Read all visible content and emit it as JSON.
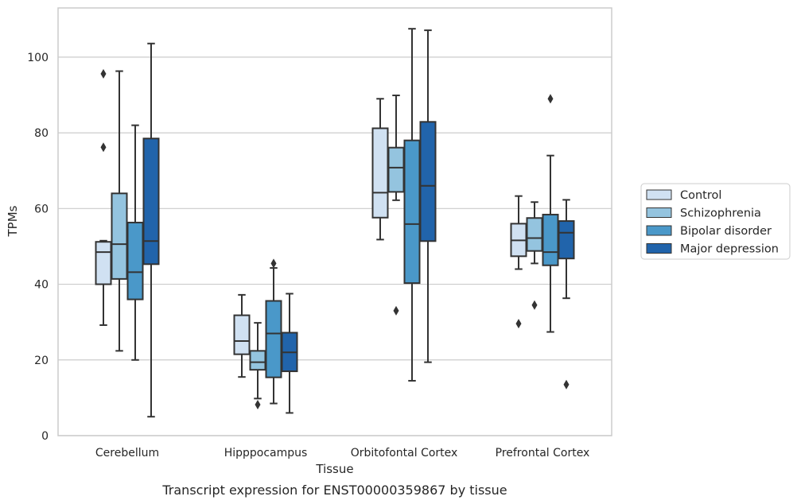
{
  "chart_data": {
    "type": "box",
    "title": "",
    "caption": "Transcript expression for ENST00000359867 by tissue",
    "xlabel": "Tissue",
    "ylabel": "TPMs",
    "ylim": [
      0,
      113
    ],
    "yticks": [
      0,
      20,
      40,
      60,
      80,
      100
    ],
    "grid": "horizontal",
    "legend_position": "right",
    "categories": [
      "Cerebellum",
      "Hipppocampus",
      "Orbitofontal Cortex",
      "Prefrontal Cortex"
    ],
    "series": [
      {
        "name": "Control",
        "color": "#d0e1f2",
        "boxes": [
          {
            "whislo": 29.2,
            "q1": 40.0,
            "med": 48.5,
            "q3": 51.2,
            "whishi": 51.5,
            "fliers": [
              76.2,
              95.6
            ]
          },
          {
            "whislo": 15.5,
            "q1": 21.5,
            "med": 25.0,
            "q3": 31.8,
            "whishi": 37.2,
            "fliers": []
          },
          {
            "whislo": 51.8,
            "q1": 57.6,
            "med": 64.2,
            "q3": 81.2,
            "whishi": 89.0,
            "fliers": []
          },
          {
            "whislo": 44.0,
            "q1": 47.4,
            "med": 51.6,
            "q3": 56.0,
            "whishi": 63.3,
            "fliers": [
              29.6
            ]
          }
        ]
      },
      {
        "name": "Schizophrenia",
        "color": "#94c4df",
        "boxes": [
          {
            "whislo": 22.4,
            "q1": 41.4,
            "med": 50.6,
            "q3": 64.0,
            "whishi": 96.3,
            "fliers": []
          },
          {
            "whislo": 9.8,
            "q1": 17.4,
            "med": 19.4,
            "q3": 22.4,
            "whishi": 29.8,
            "fliers": [
              8.2
            ]
          },
          {
            "whislo": 62.2,
            "q1": 64.4,
            "med": 70.8,
            "q3": 76.1,
            "whishi": 89.9,
            "fliers": [
              33.0
            ]
          },
          {
            "whislo": 45.5,
            "q1": 48.8,
            "med": 52.2,
            "q3": 57.5,
            "whishi": 61.7,
            "fliers": [
              34.5
            ]
          }
        ]
      },
      {
        "name": "Bipolar disorder",
        "color": "#4a98c9",
        "boxes": [
          {
            "whislo": 20.0,
            "q1": 36.0,
            "med": 43.2,
            "q3": 56.3,
            "whishi": 82.0,
            "fliers": []
          },
          {
            "whislo": 8.5,
            "q1": 15.4,
            "med": 27.0,
            "q3": 35.6,
            "whishi": 44.3,
            "fliers": [
              45.5
            ]
          },
          {
            "whislo": 14.5,
            "q1": 40.3,
            "med": 55.9,
            "q3": 78.0,
            "whishi": 107.5,
            "fliers": []
          },
          {
            "whislo": 27.4,
            "q1": 45.0,
            "med": 48.5,
            "q3": 58.4,
            "whishi": 74.0,
            "fliers": [
              89.0
            ]
          }
        ]
      },
      {
        "name": "Major depression",
        "color": "#2164ab",
        "boxes": [
          {
            "whislo": 5.0,
            "q1": 45.3,
            "med": 51.4,
            "q3": 78.5,
            "whishi": 103.6,
            "fliers": []
          },
          {
            "whislo": 6.0,
            "q1": 17.0,
            "med": 22.0,
            "q3": 27.2,
            "whishi": 37.5,
            "fliers": []
          },
          {
            "whislo": 19.4,
            "q1": 51.4,
            "med": 66.0,
            "q3": 82.9,
            "whishi": 107.1,
            "fliers": []
          },
          {
            "whislo": 36.3,
            "q1": 46.8,
            "med": 53.6,
            "q3": 56.7,
            "whishi": 62.3,
            "fliers": [
              13.5
            ]
          }
        ]
      }
    ]
  }
}
